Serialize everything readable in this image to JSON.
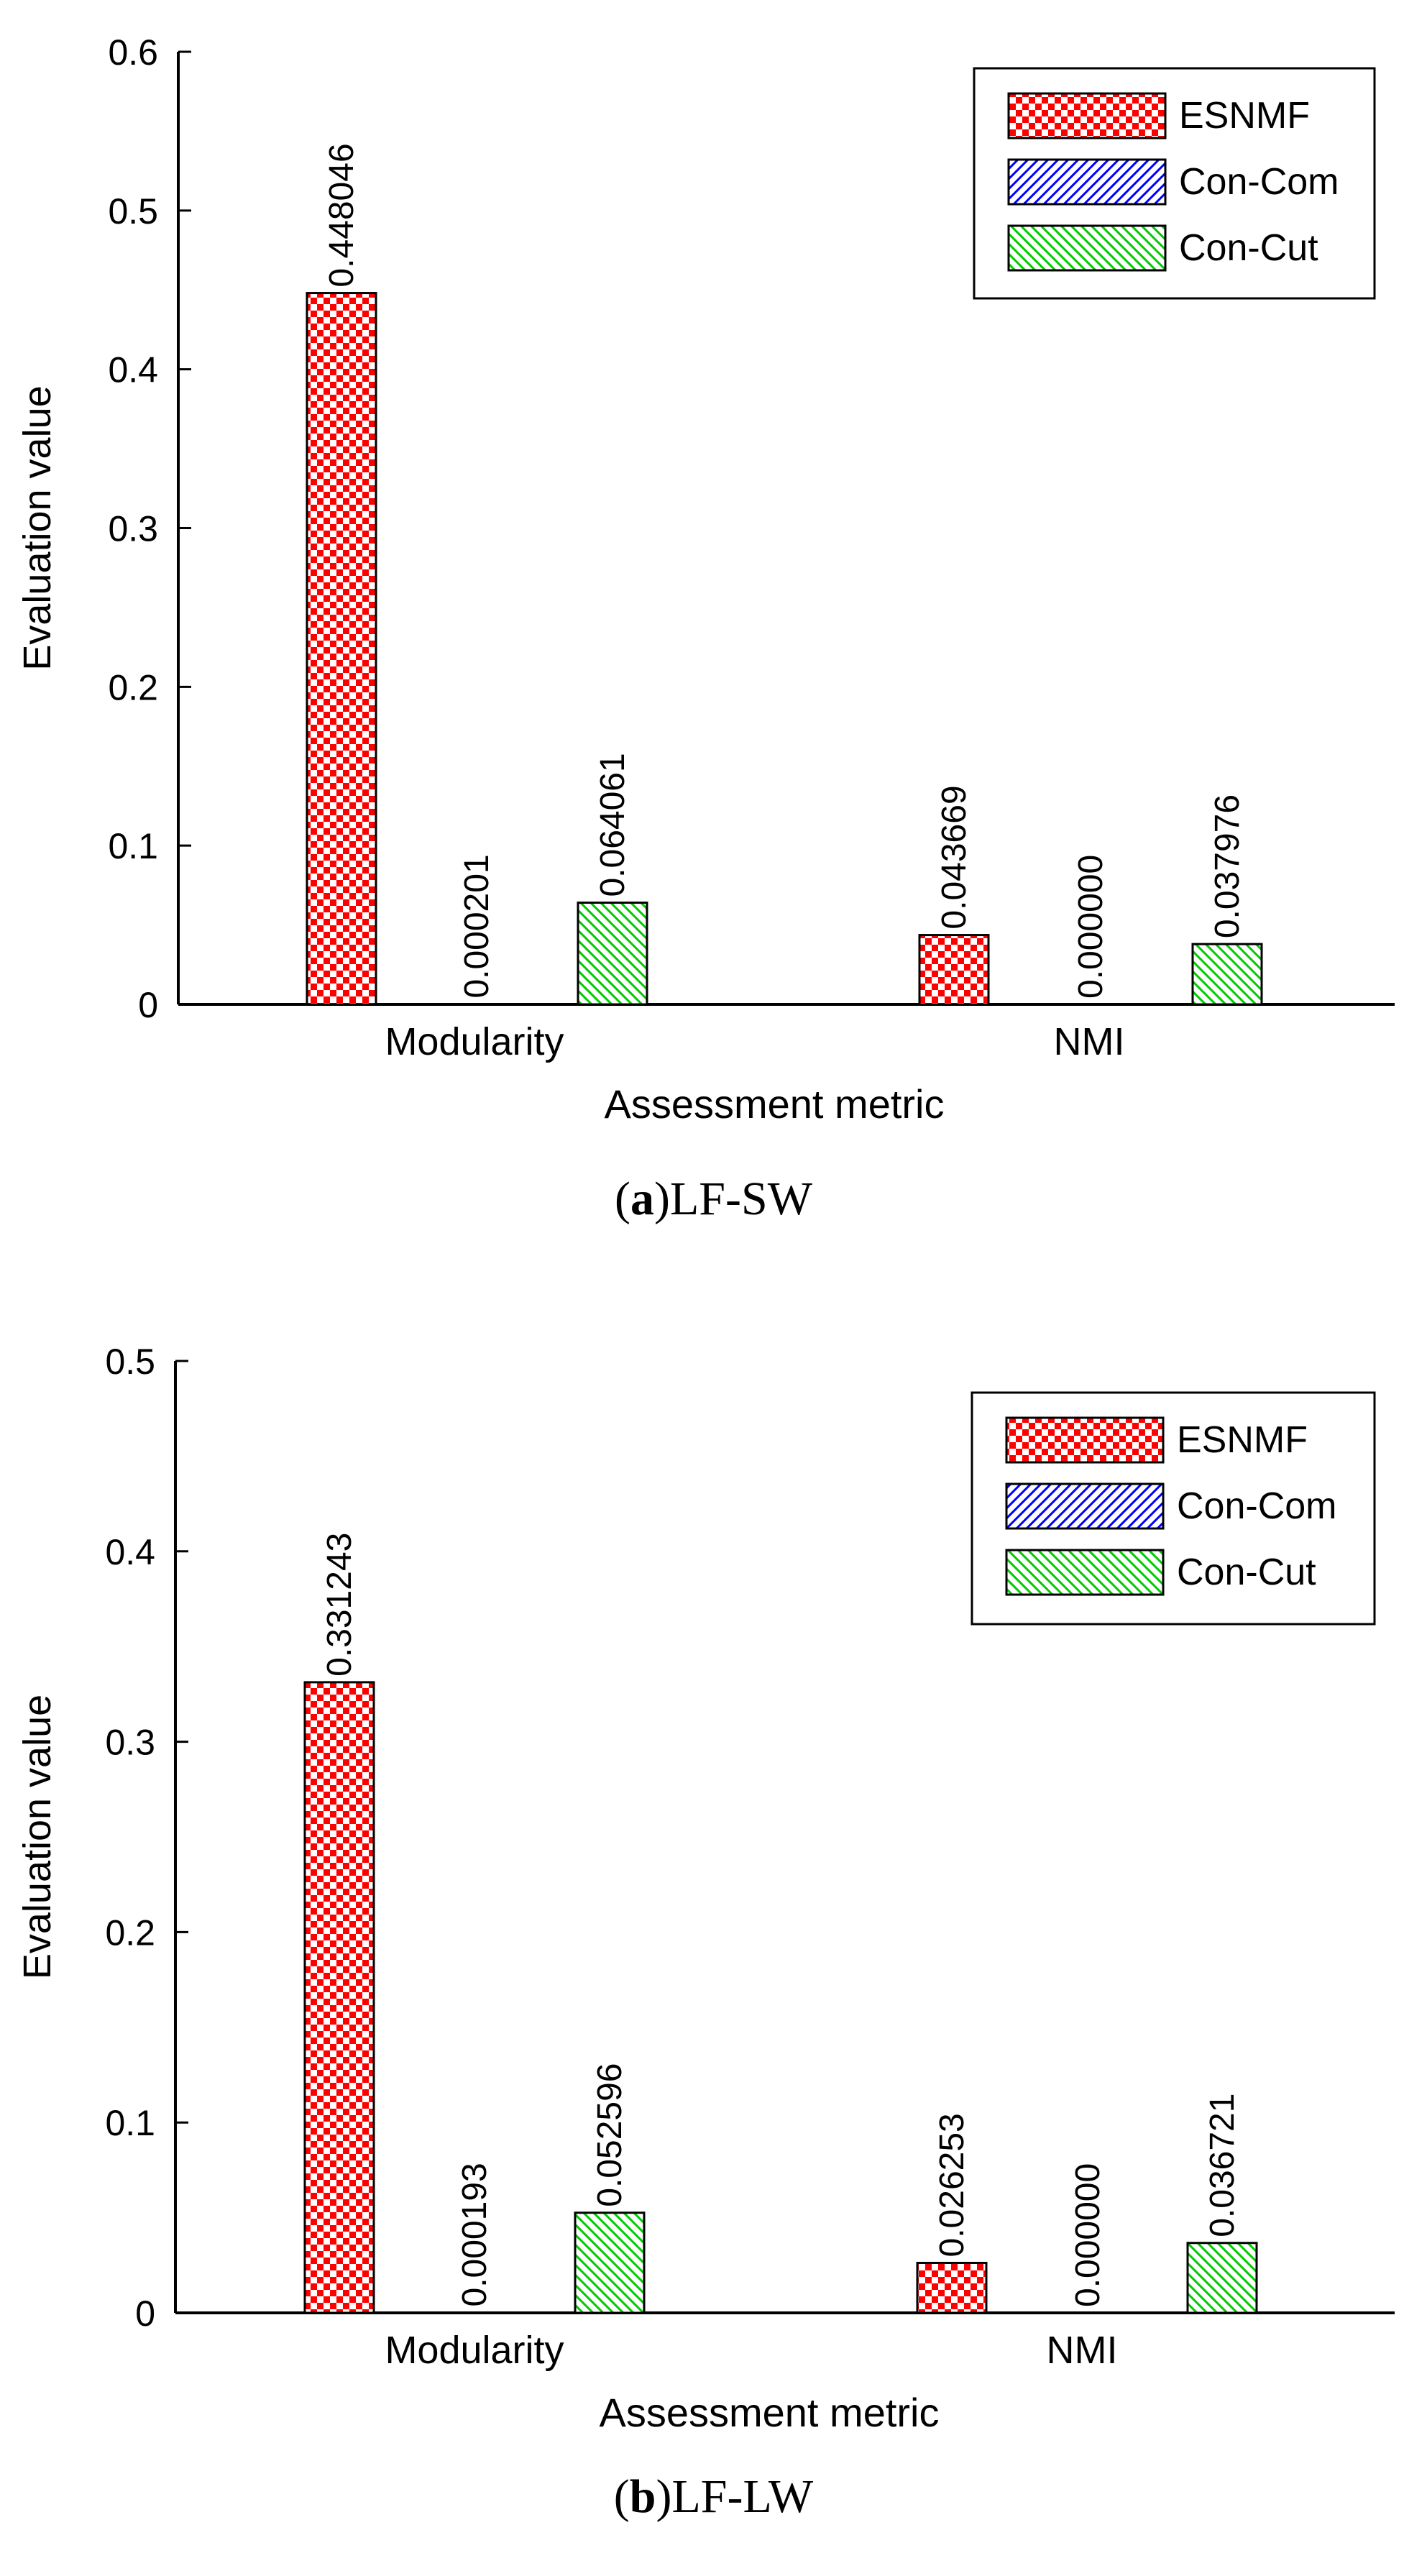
{
  "chart_data": [
    {
      "type": "bar",
      "panel_letter": "a",
      "panel_name": "LF-SW",
      "xlabel": "Assessment metric",
      "ylabel": "Evaluation value",
      "ylim": [
        0,
        0.6
      ],
      "yticks": [
        "0",
        "0.1",
        "0.2",
        "0.3",
        "0.4",
        "0.5",
        "0.6"
      ],
      "categories": [
        "Modularity",
        "NMI"
      ],
      "series": [
        {
          "name": "ESNMF",
          "values": [
            0.448046,
            0.043669
          ],
          "labels": [
            "0.448046",
            "0.043669"
          ]
        },
        {
          "name": "Con-Com",
          "values": [
            0.000201,
            0.0
          ],
          "labels": [
            "0.000201",
            "0.000000"
          ]
        },
        {
          "name": "Con-Cut",
          "values": [
            0.064061,
            0.037976
          ],
          "labels": [
            "0.064061",
            "0.037976"
          ]
        }
      ],
      "legend_position": "top-right",
      "grid": false
    },
    {
      "type": "bar",
      "panel_letter": "b",
      "panel_name": "LF-LW",
      "xlabel": "Assessment metric",
      "ylabel": "Evaluation value",
      "ylim": [
        0,
        0.5
      ],
      "yticks": [
        "0",
        "0.1",
        "0.2",
        "0.3",
        "0.4",
        "0.5"
      ],
      "categories": [
        "Modularity",
        "NMI"
      ],
      "series": [
        {
          "name": "ESNMF",
          "values": [
            0.331243,
            0.026253
          ],
          "labels": [
            "0.331243",
            "0.026253"
          ]
        },
        {
          "name": "Con-Com",
          "values": [
            0.000193,
            0.0
          ],
          "labels": [
            "0.000193",
            "0.000000"
          ]
        },
        {
          "name": "Con-Cut",
          "values": [
            0.052596,
            0.036721
          ],
          "labels": [
            "0.052596",
            "0.036721"
          ]
        }
      ],
      "legend_position": "top-right",
      "grid": false
    }
  ],
  "colors": {
    "esnmf": "#ff0000",
    "concom": "#0000ff",
    "concut": "#00cc00",
    "axis": "#000000"
  }
}
